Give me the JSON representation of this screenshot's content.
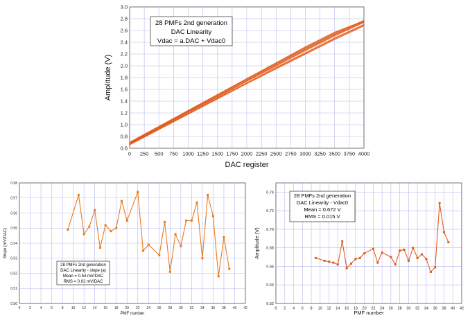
{
  "chart_data": [
    {
      "type": "line",
      "xlabel": "DAC register",
      "ylabel": "Amplitude (V)",
      "xlim": [
        0,
        4000
      ],
      "ylim": [
        0.6,
        3.0
      ],
      "xticks": [
        "0",
        "250",
        "500",
        "750",
        "1000",
        "1250",
        "1500",
        "1750",
        "2000",
        "2250",
        "2500",
        "2750",
        "3000",
        "3250",
        "3500",
        "3750",
        "4000"
      ],
      "yticks": [
        "0.6",
        "0.8",
        "1.0",
        "1.2",
        "1.4",
        "1.6",
        "1.8",
        "2.0",
        "2.2",
        "2.4",
        "2.6",
        "2.8",
        "3.0"
      ],
      "grid": true,
      "legend": {
        "position": "top-left",
        "lines": [
          "28 PMFs 2nd generation",
          "DAC Linearity",
          "Vdac = a.DAC + Vdac0"
        ]
      },
      "series": [
        {
          "x": [
            0,
            500,
            1000,
            1500,
            2000,
            2500,
            3000,
            3500,
            4000
          ],
          "y": [
            0.67,
            0.93,
            1.19,
            1.45,
            1.71,
            1.97,
            2.22,
            2.47,
            2.7
          ]
        },
        {
          "x": [
            0,
            500,
            1000,
            1500,
            2000,
            2500,
            3000,
            3500,
            4000
          ],
          "y": [
            0.68,
            0.94,
            1.21,
            1.47,
            1.74,
            2.0,
            2.26,
            2.51,
            2.74
          ]
        },
        {
          "x": [
            0,
            500,
            1000,
            1500,
            2000,
            2500,
            3000,
            3500,
            4000
          ],
          "y": [
            0.69,
            0.96,
            1.23,
            1.5,
            1.77,
            2.04,
            2.3,
            2.55,
            2.77
          ]
        },
        {
          "x": [
            0,
            500,
            1000,
            1500,
            2000,
            2500,
            3000,
            3500,
            4000
          ],
          "y": [
            0.7,
            0.97,
            1.24,
            1.51,
            1.78,
            2.05,
            2.32,
            2.57,
            2.76
          ]
        },
        {
          "x": [
            0,
            500,
            1000,
            1500,
            2000,
            2500,
            3000,
            3500,
            4000
          ],
          "y": [
            0.66,
            0.92,
            1.18,
            1.44,
            1.7,
            1.95,
            2.2,
            2.45,
            2.68
          ]
        },
        {
          "x": [
            0,
            500,
            1000,
            1500,
            2000,
            2500,
            3000,
            3500,
            4000
          ],
          "y": [
            0.68,
            0.95,
            1.22,
            1.48,
            1.75,
            2.02,
            2.28,
            2.53,
            2.75
          ]
        }
      ],
      "color": "#e05a1a"
    },
    {
      "type": "line",
      "xlabel": "PMF number",
      "ylabel": "Slope (mV/DAC)",
      "xlim": [
        0,
        42
      ],
      "ylim": [
        0.5,
        0.58
      ],
      "xticks": [
        "0",
        "2",
        "4",
        "6",
        "8",
        "10",
        "12",
        "14",
        "16",
        "18",
        "20",
        "22",
        "24",
        "26",
        "28",
        "30",
        "32",
        "34",
        "36",
        "38",
        "40",
        "42"
      ],
      "yticks": [
        "0.50",
        "0.51",
        "0.52",
        "0.53",
        "0.54",
        "0.55",
        "0.56",
        "0.57",
        "0.58"
      ],
      "grid": true,
      "legend": {
        "position": "bottom-left",
        "lines": [
          "28 PMFs 2nd generation",
          "DAC Linearity - slope (a)",
          "Mean = 0.54 mV/DAC",
          "RMS = 0.02 mV/DAC"
        ]
      },
      "series": [
        {
          "x": [
            9,
            11,
            12,
            13,
            14,
            15,
            16,
            17,
            18,
            19,
            20,
            22,
            23,
            24,
            26,
            27,
            28,
            29,
            30,
            31,
            32,
            33,
            34,
            35,
            36,
            37,
            38,
            39
          ],
          "y": [
            0.549,
            0.572,
            0.546,
            0.551,
            0.562,
            0.537,
            0.552,
            0.548,
            0.55,
            0.568,
            0.555,
            0.574,
            0.535,
            0.539,
            0.532,
            0.554,
            0.521,
            0.546,
            0.538,
            0.555,
            0.555,
            0.567,
            0.53,
            0.572,
            0.558,
            0.518,
            0.544,
            0.523
          ]
        }
      ],
      "color": "#e87a1e"
    },
    {
      "type": "line",
      "xlabel": "PMF number",
      "ylabel": "Amplitude (V)",
      "xlim": [
        0,
        42
      ],
      "ylim": [
        0.62,
        0.75
      ],
      "xticks": [
        "0",
        "2",
        "4",
        "6",
        "8",
        "10",
        "12",
        "14",
        "16",
        "18",
        "20",
        "22",
        "24",
        "26",
        "28",
        "30",
        "32",
        "34",
        "36",
        "38",
        "40",
        "42"
      ],
      "yticks": [
        "0.62",
        "0.64",
        "0.66",
        "0.68",
        "0.70",
        "0.72",
        "0.74"
      ],
      "grid": true,
      "legend": {
        "position": "top-left",
        "lines": [
          "28 PMFs 2nd generation",
          "DAC Linearity - Vdac0",
          "Mean = 0.672 V",
          "RMS = 0.015 V"
        ]
      },
      "series": [
        {
          "x": [
            9,
            11,
            12,
            13,
            14,
            15,
            16,
            17,
            18,
            19,
            20,
            22,
            23,
            24,
            26,
            27,
            28,
            29,
            30,
            31,
            32,
            33,
            34,
            35,
            36,
            37,
            38,
            39
          ],
          "y": [
            0.669,
            0.666,
            0.665,
            0.664,
            0.662,
            0.687,
            0.658,
            0.663,
            0.668,
            0.669,
            0.674,
            0.679,
            0.664,
            0.675,
            0.67,
            0.662,
            0.677,
            0.678,
            0.666,
            0.68,
            0.669,
            0.673,
            0.668,
            0.654,
            0.659,
            0.728,
            0.697,
            0.686
          ]
        }
      ],
      "color": "#e05a1a"
    }
  ]
}
